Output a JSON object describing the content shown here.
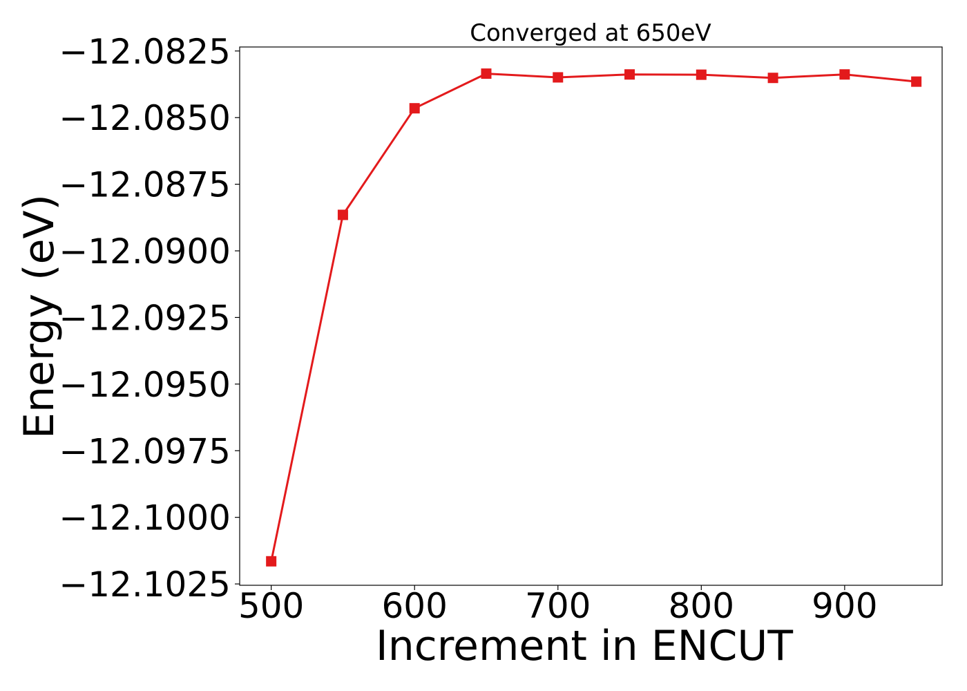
{
  "chart_data": {
    "type": "line",
    "title": "Converged at 650eV",
    "xlabel": "Increment in ENCUT",
    "ylabel": "Energy (eV)",
    "xlim": [
      478,
      968
    ],
    "ylim": [
      -12.10255,
      -12.08235
    ],
    "x_ticks": [
      500,
      600,
      700,
      800,
      900
    ],
    "x_tick_labels": [
      "500",
      "600",
      "700",
      "800",
      "900"
    ],
    "y_ticks": [
      -12.0825,
      -12.085,
      -12.0875,
      -12.09,
      -12.0925,
      -12.095,
      -12.0975,
      -12.1,
      -12.1025
    ],
    "y_tick_labels": [
      "−12.0825",
      "−12.0850",
      "−12.0875",
      "−12.0900",
      "−12.0925",
      "−12.0950",
      "−12.0975",
      "−12.1000",
      "−12.1025"
    ],
    "grid": false,
    "series": [
      {
        "color": "#e31a1c",
        "marker": "square",
        "x": [
          500,
          550,
          600,
          650,
          700,
          750,
          800,
          850,
          900,
          950
        ],
        "y": [
          -12.10165,
          -12.08865,
          -12.08465,
          -12.08335,
          -12.08349,
          -12.08338,
          -12.08339,
          -12.08351,
          -12.08338,
          -12.08365
        ]
      }
    ]
  }
}
